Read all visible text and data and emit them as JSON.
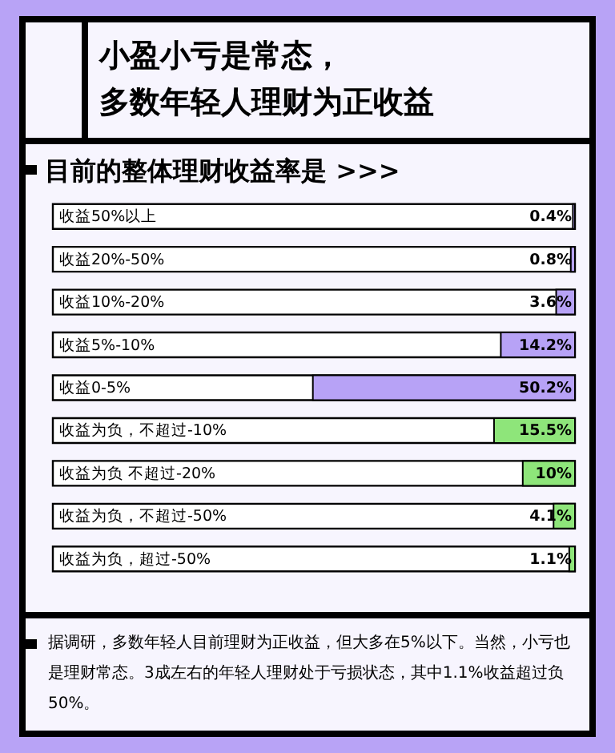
{
  "chart_data": {
    "type": "bar",
    "orientation": "horizontal",
    "title": "小盈小亏是常态，多数年轻人理财为正收益",
    "subtitle": "目前的整体理财收益率是 >>>",
    "categories": [
      "收益50%以上",
      "收益20%-50%",
      "收益10%-20%",
      "收益5%-10%",
      "收益0-5%",
      "收益为负，不超过-10%",
      "收益为负 不超过-20%",
      "收益为负，不超过-50%",
      "收益为负，超过-50%"
    ],
    "values": [
      0.4,
      0.8,
      3.6,
      14.2,
      50.2,
      15.5,
      10,
      4.1,
      1.1
    ],
    "colors": [
      "#b7a2f6",
      "#b7a2f6",
      "#b7a2f6",
      "#b7a2f6",
      "#b7a2f6",
      "#8ee57a",
      "#8ee57a",
      "#8ee57a",
      "#8ee57a"
    ],
    "value_labels": [
      "0.4%",
      "0.8%",
      "3.6%",
      "14.2%",
      "50.2%",
      "15.5%",
      "10%",
      "4.1%",
      "1.1%"
    ],
    "xlim": [
      100,
      0
    ],
    "annotations": [
      "据调研，多数年轻人目前理财为正收益，但大多在5%以下。当然，小亏也是理财常态。3成左右的年轻人理财处于亏损状态，其中1.1%收益超过负50%。"
    ]
  }
}
